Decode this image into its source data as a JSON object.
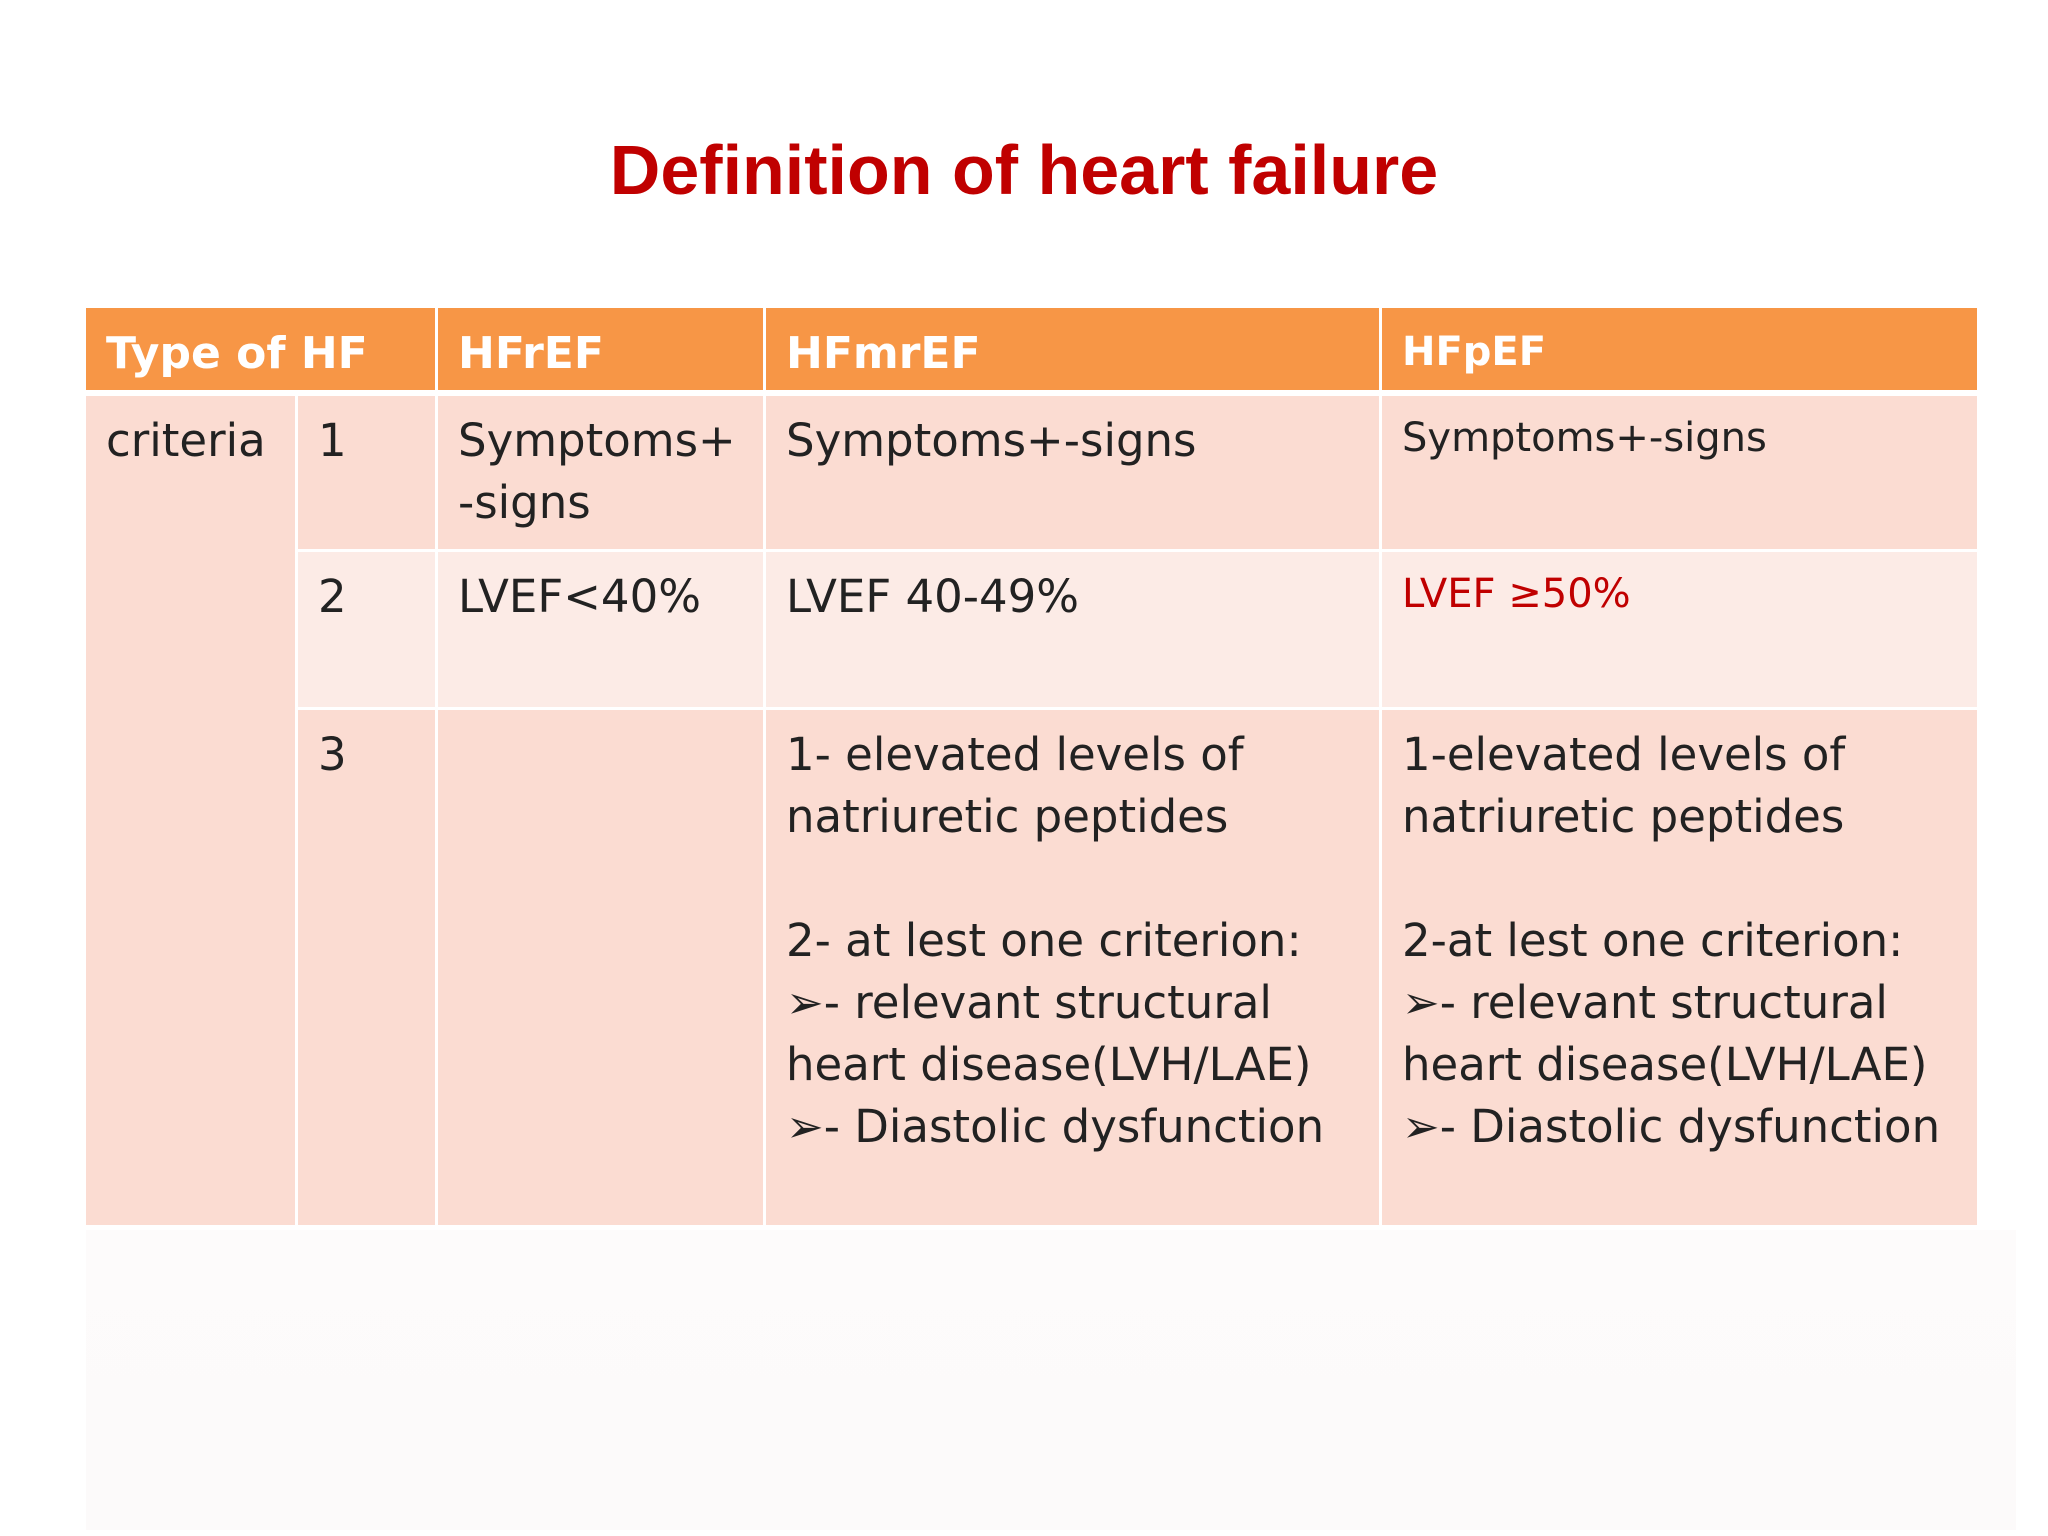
{
  "title": "Definition of heart failure",
  "table": {
    "headers": [
      "Type of HF",
      "HFrEF",
      "HFmrEF",
      "HFpEF"
    ],
    "row_group_label": "criteria",
    "rows": [
      {
        "num": "1",
        "hfref": "Symptoms+\n-signs",
        "hfmref": "Symptoms+-signs",
        "hfpef": "Symptoms+-signs"
      },
      {
        "num": "2",
        "hfref": "LVEF<40%",
        "hfmref": "LVEF 40-49%",
        "hfpef": "LVEF ≥50%"
      },
      {
        "num": "3",
        "hfref": "",
        "hfmref": "1- elevated levels of\nnatriuretic peptides\n\n2- at lest one criterion:\n➢- relevant structural\nheart disease(LVH/LAE)\n➢- Diastolic dysfunction",
        "hfpef": "1-elevated levels of\nnatriuretic peptides\n\n2-at lest one criterion:\n➢- relevant structural\nheart disease(LVH/LAE)\n➢- Diastolic dysfunction"
      }
    ]
  },
  "colors": {
    "title": "#c00000",
    "header_bg": "#f79646",
    "cell_bg": "#fbdcd2",
    "cell_bg_alt": "#fcebe6",
    "highlight_text": "#c00000"
  }
}
